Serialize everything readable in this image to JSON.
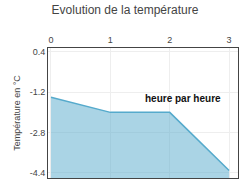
{
  "chart_data": {
    "type": "area",
    "title": "Evolution de la température",
    "ylabel": "Température en °C",
    "x": [
      0,
      1,
      2,
      3
    ],
    "values": [
      -1.4,
      -2.0,
      -2.0,
      -4.3
    ],
    "color": "#55aacc",
    "xlim": [
      -0.05,
      3.15
    ],
    "ylim": [
      -4.6,
      0.55
    ],
    "xticks": [
      0,
      1,
      2,
      3
    ],
    "yticks": [
      0.4,
      -1.2,
      -2.8,
      -4.4
    ],
    "grid": true,
    "annotations": [
      {
        "text": "heure par heure",
        "x": 1.55,
        "y": -1.15
      }
    ]
  }
}
